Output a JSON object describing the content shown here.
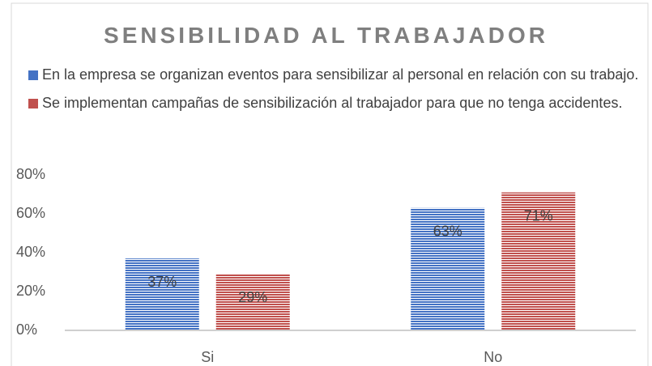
{
  "chart_data": {
    "type": "bar",
    "title": "SENSIBILIDAD AL TRABAJADOR",
    "categories": [
      "Si",
      "No"
    ],
    "series": [
      {
        "name": "En la empresa se organizan eventos para sensibilizar al personal en relación con su trabajo.",
        "color": "#4472c4",
        "values": [
          37,
          63
        ],
        "value_labels": [
          "37%",
          "63%"
        ]
      },
      {
        "name": "Se implementan campañas de sensibilización al trabajador para que no tenga accidentes.",
        "color": "#c0504d",
        "values": [
          29,
          71
        ],
        "value_labels": [
          "29%",
          "71%"
        ]
      }
    ],
    "ylim": [
      0,
      80
    ],
    "yticks": [
      {
        "value": 0,
        "label": "0%"
      },
      {
        "value": 20,
        "label": "20%"
      },
      {
        "value": 40,
        "label": "40%"
      },
      {
        "value": 60,
        "label": "60%"
      },
      {
        "value": 80,
        "label": "80%"
      }
    ],
    "grid": false
  }
}
